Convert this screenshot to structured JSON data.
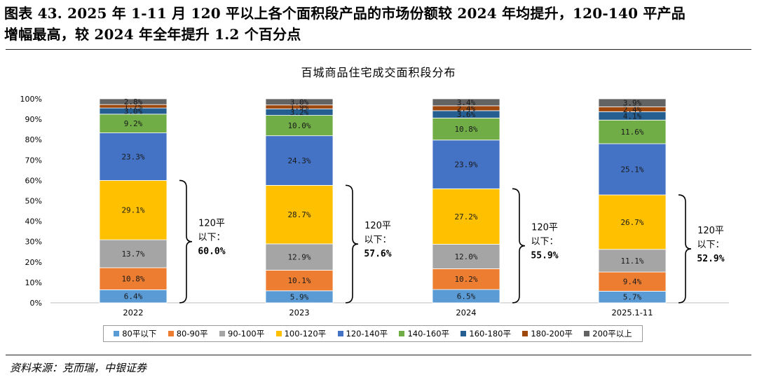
{
  "header": {
    "line1": "图表 43. 2025 年 1-11 月 120 平以上各个面积段产品的市场份额较 2024 年均提升，120-140 平产品",
    "line2": "增幅最高，较 2024 年全年提升 1.2 个百分点"
  },
  "footer": {
    "source": "资料来源：克而瑞，中银证券"
  },
  "chart_data": {
    "type": "bar",
    "stacked": true,
    "title": "百城商品住宅成交面积段分布",
    "xlabel": "",
    "ylabel": "",
    "ylim": [
      0,
      100
    ],
    "yticks": [
      "0%",
      "10%",
      "20%",
      "30%",
      "40%",
      "50%",
      "60%",
      "70%",
      "80%",
      "90%",
      "100%"
    ],
    "categories": [
      "2022",
      "2023",
      "2024",
      "2025.1-11"
    ],
    "series": [
      {
        "name": "80平以下",
        "color": "#5b9bd5",
        "values": [
          6.4,
          5.9,
          6.5,
          5.7
        ],
        "labels": [
          "6.4%",
          "5.9%",
          "6.5%",
          "5.7%"
        ]
      },
      {
        "name": "80-90平",
        "color": "#ed7d31",
        "values": [
          10.8,
          10.1,
          10.2,
          9.4
        ],
        "labels": [
          "10.8%",
          "10.1%",
          "10.2%",
          "9.4%"
        ]
      },
      {
        "name": "90-100平",
        "color": "#a5a5a5",
        "values": [
          13.7,
          12.9,
          12.0,
          11.1
        ],
        "labels": [
          "13.7%",
          "12.9%",
          "12.0%",
          "11.1%"
        ]
      },
      {
        "name": "100-120平",
        "color": "#ffc000",
        "values": [
          29.1,
          28.7,
          27.2,
          26.7
        ],
        "labels": [
          "29.1%",
          "28.7%",
          "27.2%",
          "26.7%"
        ]
      },
      {
        "name": "120-140平",
        "color": "#4472c4",
        "values": [
          23.3,
          24.3,
          23.9,
          25.1
        ],
        "labels": [
          "23.3%",
          "24.3%",
          "23.9%",
          "25.1%"
        ]
      },
      {
        "name": "140-160平",
        "color": "#70ad47",
        "values": [
          9.2,
          10.0,
          10.8,
          11.6
        ],
        "labels": [
          "9.2%",
          "10.0%",
          "10.8%",
          "11.6%"
        ]
      },
      {
        "name": "160-180平",
        "color": "#255e91",
        "values": [
          3.0,
          3.2,
          3.6,
          4.1
        ],
        "labels": [
          "3.0%",
          "3.2%",
          "3.6%",
          "4.1%"
        ]
      },
      {
        "name": "180-200平",
        "color": "#9e480e",
        "values": [
          1.7,
          1.9,
          2.4,
          2.4
        ],
        "labels": [
          "1.7%",
          "1.9%",
          "2.4%",
          "2.4%"
        ]
      },
      {
        "name": "200平以上",
        "color": "#636363",
        "values": [
          2.8,
          3.0,
          3.4,
          3.9
        ],
        "labels": [
          "2.8%",
          "3.0%",
          "3.4%",
          "3.9%"
        ]
      }
    ],
    "annotations": [
      {
        "category": "2022",
        "line1": "120平",
        "line2": "以下：",
        "value": "60.0%"
      },
      {
        "category": "2023",
        "line1": "120平",
        "line2": "以下：",
        "value": "57.6%"
      },
      {
        "category": "2024",
        "line1": "120平",
        "line2": "以下：",
        "value": "55.9%"
      },
      {
        "category": "2025.1-11",
        "line1": "120平",
        "line2": "以下：",
        "value": "52.9%"
      }
    ]
  }
}
